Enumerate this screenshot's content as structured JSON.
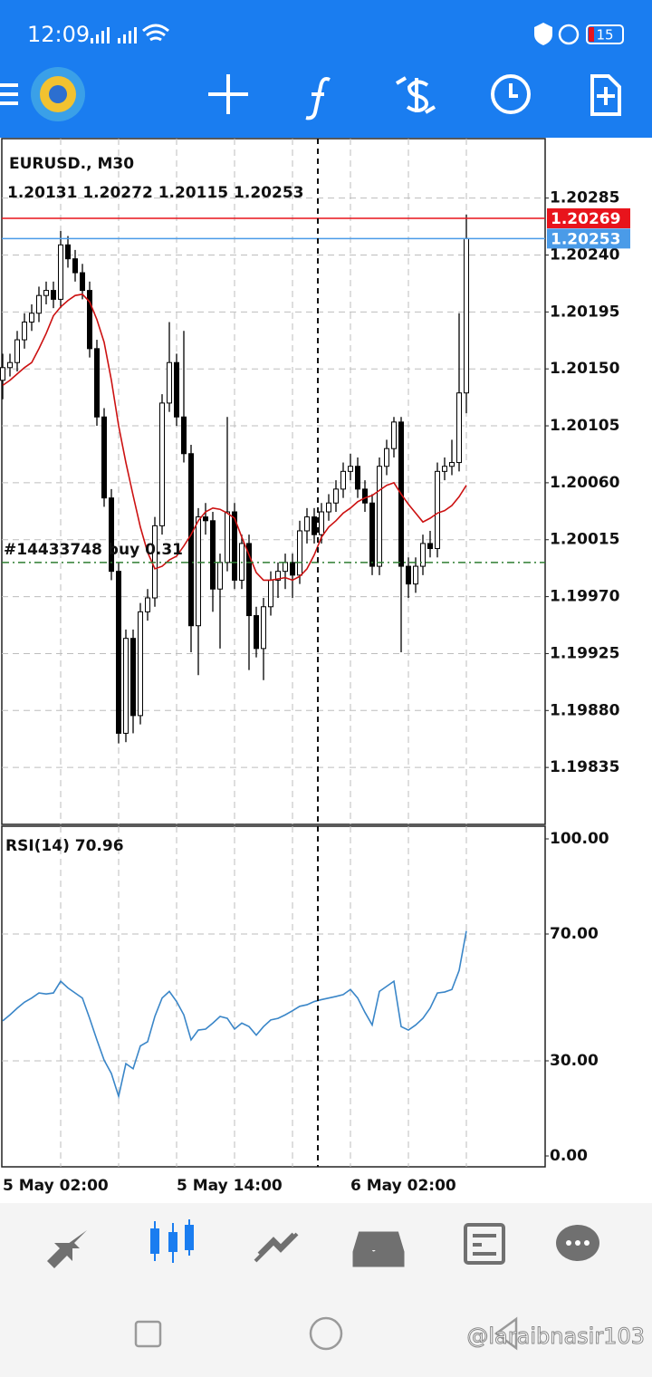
{
  "status_bar": {
    "time": "12:09",
    "battery": "15"
  },
  "watermark": "@laraibnasir103",
  "chart_data": [
    {
      "type": "candlestick",
      "title": "EURUSD., M30",
      "subtitle": "1.20131 1.20272 1.20115 1.20253",
      "categories": [
        "5 May 02:00",
        null,
        null,
        null,
        null,
        null,
        null,
        null,
        null,
        null,
        null,
        null,
        null,
        null,
        null,
        null,
        null,
        null,
        null,
        null,
        null,
        null,
        null,
        null,
        "5 May 14:00",
        null,
        null,
        null,
        null,
        null,
        null,
        null,
        null,
        null,
        null,
        null,
        null,
        null,
        null,
        null,
        null,
        null,
        null,
        null,
        null,
        null,
        null,
        null,
        "6 May 02:00",
        null,
        null,
        null,
        null,
        null,
        null,
        null,
        null,
        null,
        null,
        null,
        null,
        null,
        null,
        null,
        null
      ],
      "open": [
        1.20141,
        1.20151,
        1.20155,
        1.20173,
        1.20187,
        1.20194,
        1.20208,
        1.20212,
        1.20205,
        1.20248,
        1.20237,
        1.20226,
        1.20212,
        1.20166,
        1.20112,
        1.20048,
        1.1999,
        1.19862,
        1.19937,
        1.19876,
        1.19958,
        1.19969,
        1.20026,
        1.20123,
        1.20155,
        1.20112,
        1.20083,
        1.19947,
        1.20033,
        1.2003,
        1.19976,
        1.19997,
        1.20037,
        1.19983,
        1.20012,
        1.19955,
        1.19929,
        1.19962,
        1.19983,
        1.1999,
        1.19997,
        1.19987,
        1.20022,
        1.20033,
        1.20019,
        1.20037,
        1.20044,
        1.20055,
        1.20069,
        1.20073,
        1.20055,
        1.20044,
        1.19994,
        1.20073,
        1.20087,
        1.20108,
        1.19994,
        1.1998,
        1.19994,
        1.20012,
        1.20008,
        1.20069,
        1.20073,
        1.20076,
        1.20131
      ],
      "high": [
        1.20162,
        1.20162,
        1.2018,
        1.20194,
        1.20201,
        1.20215,
        1.20219,
        1.20219,
        1.20259,
        1.20255,
        1.20244,
        1.20233,
        1.20219,
        1.20173,
        1.20119,
        1.20055,
        1.19997,
        1.19944,
        1.19944,
        1.19965,
        1.19976,
        1.20033,
        1.2013,
        1.20187,
        1.20162,
        1.2018,
        1.2009,
        1.2004,
        1.20044,
        1.20037,
        1.20004,
        1.20112,
        1.20044,
        1.20019,
        1.20019,
        1.19962,
        1.19969,
        1.1999,
        1.19997,
        1.20004,
        1.20004,
        1.2003,
        1.2004,
        1.2004,
        1.20044,
        1.20051,
        1.20062,
        1.20076,
        1.20083,
        1.2008,
        1.20062,
        1.20051,
        1.2008,
        1.20094,
        1.20112,
        1.20112,
        1.20001,
        1.20001,
        1.20019,
        1.20022,
        1.20076,
        1.2008,
        1.20094,
        1.20194,
        1.20272
      ],
      "low": [
        1.20126,
        1.20144,
        1.20148,
        1.20166,
        1.2018,
        1.20187,
        1.20201,
        1.20198,
        1.20198,
        1.2023,
        1.20219,
        1.20205,
        1.20159,
        1.20105,
        1.20041,
        1.19983,
        1.19854,
        1.19855,
        1.19862,
        1.19869,
        1.19951,
        1.19962,
        1.20019,
        1.20116,
        1.20105,
        1.20076,
        1.19926,
        1.19908,
        1.20019,
        1.19958,
        1.19929,
        1.1999,
        1.19976,
        1.19976,
        1.19912,
        1.19922,
        1.19904,
        1.19955,
        1.19969,
        1.19976,
        1.19969,
        1.1998,
        1.20012,
        1.20012,
        1.20012,
        1.2003,
        1.20037,
        1.20048,
        1.20062,
        1.20048,
        1.20037,
        1.19987,
        1.19987,
        1.20066,
        1.2008,
        1.19926,
        1.19969,
        1.19973,
        1.19987,
        1.20001,
        1.20001,
        1.20062,
        1.20066,
        1.20069,
        1.20115
      ],
      "close": [
        1.20151,
        1.20155,
        1.20173,
        1.20187,
        1.20194,
        1.20208,
        1.20212,
        1.20205,
        1.20248,
        1.20237,
        1.20226,
        1.20212,
        1.20166,
        1.20112,
        1.20048,
        1.1999,
        1.19862,
        1.19937,
        1.19876,
        1.19958,
        1.19969,
        1.20026,
        1.20123,
        1.20155,
        1.20112,
        1.20083,
        1.19947,
        1.20033,
        1.2003,
        1.19976,
        1.19997,
        1.20037,
        1.19983,
        1.20012,
        1.19955,
        1.19929,
        1.19962,
        1.19983,
        1.1999,
        1.19997,
        1.19987,
        1.20022,
        1.20033,
        1.20019,
        1.20037,
        1.20044,
        1.20055,
        1.20069,
        1.20073,
        1.20055,
        1.20044,
        1.19994,
        1.20073,
        1.20087,
        1.20108,
        1.19994,
        1.1998,
        1.19994,
        1.20012,
        1.20008,
        1.20069,
        1.20073,
        1.20076,
        1.20131,
        1.20253
      ],
      "ma": {
        "color": "#cc1111",
        "values": [
          1.20137,
          1.20141,
          1.20146,
          1.20151,
          1.20155,
          1.20166,
          1.20178,
          1.20192,
          1.20199,
          1.20204,
          1.20208,
          1.20209,
          1.20203,
          1.20189,
          1.20171,
          1.20141,
          1.20105,
          1.20076,
          1.2005,
          1.20025,
          1.20005,
          1.19992,
          1.19994,
          1.19999,
          1.20002,
          1.2001,
          1.20019,
          1.2003,
          1.20037,
          1.2004,
          1.20039,
          1.20036,
          1.20032,
          1.20017,
          1.20003,
          1.19989,
          1.19983,
          1.19983,
          1.19984,
          1.19985,
          1.19983,
          1.19986,
          1.19992,
          1.20003,
          1.20017,
          1.20025,
          1.2003,
          1.20036,
          1.2004,
          1.20045,
          1.20048,
          1.2005,
          1.20054,
          1.20058,
          1.2006,
          1.20051,
          1.20043,
          1.20036,
          1.20029,
          1.20032,
          1.20036,
          1.20038,
          1.20042,
          1.20049,
          1.20058
        ]
      },
      "ylim": [
        1.1979,
        1.20332
      ],
      "yticks": [
        1.20285,
        {
          "value": 1.2024,
          "label": "1.20240"
        },
        1.20195,
        {
          "value": 1.2015,
          "label": "1.20150"
        },
        1.20105,
        {
          "value": 1.2006,
          "label": "1.20060"
        },
        1.20015,
        {
          "value": 1.1997,
          "label": "1.19970"
        },
        1.19925,
        {
          "value": 1.1988,
          "label": "1.19880"
        },
        1.19835
      ],
      "grid": true,
      "price_lines": [
        {
          "value": 1.20269,
          "color": "#e8141c"
        },
        {
          "value": 1.20253,
          "color": "#4a9be8"
        }
      ],
      "order_line": {
        "label": "#14433748 buy 0.31",
        "value": 1.19997,
        "color": "#2e7d32"
      }
    },
    {
      "type": "line",
      "title": "RSI(14) 70.96",
      "color": "#3a86c8",
      "values": [
        42.6,
        44.5,
        46.6,
        48.5,
        49.8,
        51.4,
        51.1,
        51.4,
        55.1,
        53.0,
        51.4,
        49.8,
        43.4,
        36.6,
        30.2,
        26.0,
        18.8,
        29.1,
        27.5,
        34.7,
        36.0,
        44.0,
        49.8,
        51.9,
        48.7,
        44.5,
        36.6,
        39.7,
        40.0,
        41.9,
        44.0,
        43.4,
        40.0,
        41.9,
        40.8,
        38.1,
        40.8,
        42.9,
        43.4,
        44.5,
        45.8,
        47.2,
        47.7,
        48.7,
        49.3,
        49.8,
        50.3,
        50.9,
        52.5,
        49.8,
        45.3,
        41.3,
        51.9,
        53.5,
        55.1,
        40.8,
        39.7,
        41.3,
        43.4,
        46.6,
        51.4,
        51.7,
        52.5,
        58.5,
        70.96
      ],
      "ylim": [
        0,
        100
      ],
      "yticks": [
        {
          "value": 100,
          "label": "100.00"
        },
        {
          "value": 70,
          "label": "70.00"
        },
        {
          "value": 30,
          "label": "30.00"
        },
        {
          "value": 0,
          "label": "0.00"
        }
      ]
    }
  ]
}
